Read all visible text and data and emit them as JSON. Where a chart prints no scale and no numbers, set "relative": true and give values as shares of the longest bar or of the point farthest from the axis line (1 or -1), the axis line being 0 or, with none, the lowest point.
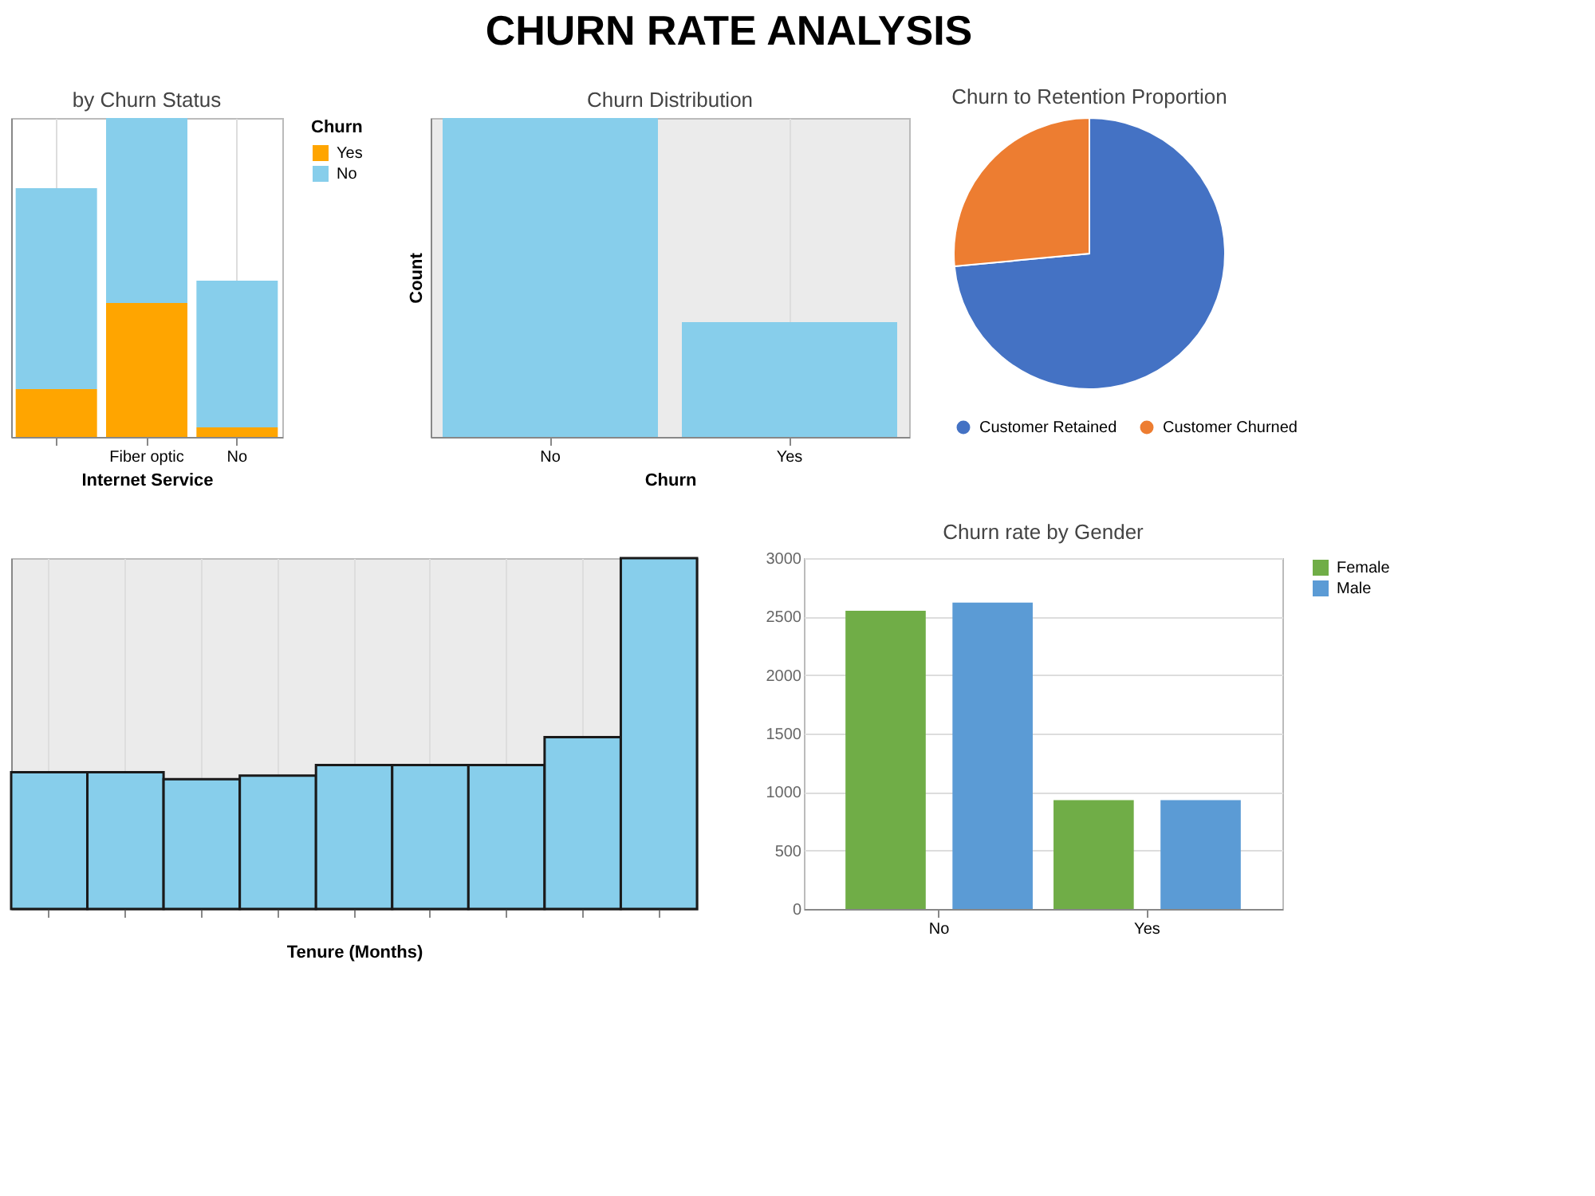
{
  "chart_data": [
    {
      "type": "other",
      "title": "CHURN RATE ANALYSIS"
    },
    {
      "type": "bar",
      "title": "by Churn Status",
      "xlabel": "Internet Service",
      "legend_title": "Churn",
      "categories": [
        null,
        "Fiber optic",
        "No"
      ],
      "stacked": true,
      "relative": true,
      "legend": "right",
      "grid": true,
      "series": [
        {
          "name": "Yes",
          "color": "#ffa500",
          "values": [
            0.15,
            0.42,
            0.03
          ]
        },
        {
          "name": "No",
          "color": "#87ceeb",
          "values": [
            0.63,
            0.58,
            0.46
          ]
        }
      ]
    },
    {
      "type": "bar",
      "title": "Churn Distribution",
      "xlabel": "Churn",
      "ylabel": "Count",
      "categories": [
        "No",
        "Yes"
      ],
      "relative": true,
      "grid": true,
      "series": [
        {
          "color": "#87ceeb",
          "values": [
            1,
            0.36
          ]
        }
      ]
    },
    {
      "type": "pie",
      "title": "Churn to Retention Proportion",
      "categories": [
        "Customer Retained",
        "Customer Churned"
      ],
      "values": [
        73.5,
        26.5
      ],
      "colors": [
        "#4472c4",
        "#ed7d31"
      ],
      "legend": "bottom"
    },
    {
      "type": "bar",
      "xlabel": "Tenure (Months)",
      "categories": [
        null,
        null,
        null,
        null,
        null,
        null,
        null,
        null,
        null
      ],
      "relative": true,
      "grid": true,
      "series": [
        {
          "color": "#87ceeb",
          "values": [
            0.39,
            0.39,
            0.37,
            0.38,
            0.41,
            0.41,
            0.41,
            0.49,
            1
          ]
        }
      ]
    },
    {
      "type": "bar",
      "title": "Churn rate by Gender",
      "categories": [
        "No",
        "Yes"
      ],
      "ylim": [
        0,
        3000
      ],
      "yticks": [
        0,
        500,
        1000,
        1500,
        2000,
        2500,
        3000
      ],
      "legend": "right",
      "grid": "y",
      "series": [
        {
          "name": "Female",
          "color": "#70ad47",
          "values": [
            2550,
            930
          ]
        },
        {
          "name": "Male",
          "color": "#5b9bd5",
          "values": [
            2620,
            930
          ]
        }
      ]
    }
  ]
}
